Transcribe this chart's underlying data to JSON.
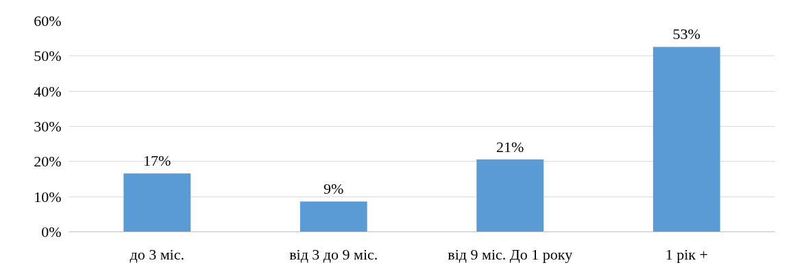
{
  "chart_data": {
    "type": "bar",
    "categories": [
      "до 3 міс.",
      "від 3 до 9 міс.",
      "від 9 міс. До 1 року",
      "1 рік +"
    ],
    "values": [
      16.6,
      8.6,
      20.6,
      52.6
    ],
    "value_labels": [
      "17%",
      "9%",
      "21%",
      "53%"
    ],
    "color": "#5b9bd5",
    "ylim": [
      0,
      60
    ],
    "yticks": [
      {
        "value": 0,
        "label": "0%"
      },
      {
        "value": 10,
        "label": "10%"
      },
      {
        "value": 20,
        "label": "20%"
      },
      {
        "value": 30,
        "label": "30%"
      },
      {
        "value": 40,
        "label": "40%"
      },
      {
        "value": 50,
        "label": "50%"
      },
      {
        "value": 60,
        "label": "60%"
      }
    ],
    "grid": "y"
  }
}
